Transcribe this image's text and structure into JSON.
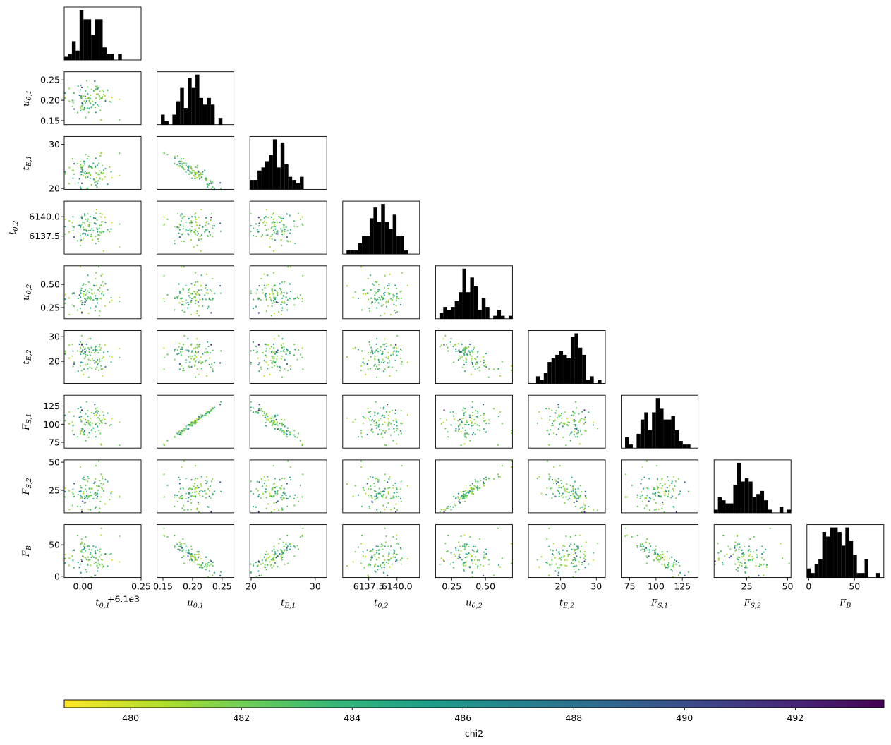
{
  "chart_data": {
    "type": "corner-plot",
    "description_free": true,
    "parameters": [
      {
        "key": "t01",
        "label": "t_{0,1}",
        "main": "t",
        "sub": "0,1",
        "range": [
          -0.08,
          0.25
        ],
        "ticks": [
          0.0,
          0.25
        ],
        "tick_labels": [
          "0.00",
          "0.25"
        ],
        "offset_text": "+6.1e3",
        "center": 0.03,
        "sd": 0.05,
        "yticks": []
      },
      {
        "key": "u01",
        "label": "u_{0,1}",
        "main": "u",
        "sub": "0,1",
        "range": [
          0.14,
          0.27
        ],
        "ticks": [
          0.15,
          0.2,
          0.25
        ],
        "tick_labels": [
          "0.15",
          "0.20",
          "0.25"
        ],
        "center": 0.205,
        "sd": 0.022
      },
      {
        "key": "tE1",
        "label": "t_{E,1}",
        "main": "t",
        "sub": "E,1",
        "range": [
          19.8,
          31.8
        ],
        "ticks": [
          20,
          30
        ],
        "tick_labels": [
          "20",
          "30"
        ],
        "center": 23.5,
        "sd": 2.0
      },
      {
        "key": "t02",
        "label": "t_{0,2}",
        "main": "t",
        "sub": "0,2",
        "range": [
          6135.2,
          6142.0
        ],
        "ticks": [
          6137.5,
          6140.0
        ],
        "tick_labels": [
          "6137.5",
          "6140.0"
        ],
        "center": 6138.7,
        "sd": 1.1
      },
      {
        "key": "u02",
        "label": "u_{0,2}",
        "main": "u",
        "sub": "0,2",
        "range": [
          0.13,
          0.7
        ],
        "ticks": [
          0.25,
          0.5
        ],
        "tick_labels": [
          "0.25",
          "0.50"
        ],
        "center": 0.36,
        "sd": 0.12
      },
      {
        "key": "tE2",
        "label": "t_{E,2}",
        "main": "t",
        "sub": "E,2",
        "range": [
          11.0,
          32.5
        ],
        "ticks": [
          20,
          30
        ],
        "tick_labels": [
          "20",
          "30"
        ],
        "center": 22.5,
        "sd": 4.0
      },
      {
        "key": "FS1",
        "label": "F_{S,1}",
        "main": "F",
        "sub": "S,1",
        "range": [
          67,
          140
        ],
        "ticks": [
          75,
          100,
          125
        ],
        "tick_labels": [
          "75",
          "100",
          "125"
        ],
        "center": 104,
        "sd": 13
      },
      {
        "key": "FS2",
        "label": "F_{S,2}",
        "main": "F",
        "sub": "S,2",
        "range": [
          5,
          52
        ],
        "ticks": [
          25,
          50
        ],
        "tick_labels": [
          "25",
          "50"
        ],
        "center": 22,
        "sd": 10
      },
      {
        "key": "FB",
        "label": "F_B",
        "main": "F",
        "sub": "B",
        "range": [
          -2,
          82
        ],
        "ticks": [
          0,
          50
        ],
        "tick_labels": [
          "0",
          "50"
        ],
        "center": 30,
        "sd": 18
      }
    ],
    "n_samples": 100,
    "scatter_color_by": "chi2",
    "histogram_color": "#000000",
    "histogram_bins": 20,
    "colorbar": {
      "label": "chi2",
      "range": [
        478.8,
        493.6
      ],
      "ticks": [
        480,
        482,
        484,
        486,
        488,
        490,
        492
      ],
      "tick_labels": [
        "480",
        "482",
        "484",
        "486",
        "488",
        "490",
        "492"
      ],
      "colormap": "viridis_r",
      "colors": [
        "#fde725",
        "#b5de2b",
        "#6ece58",
        "#35b779",
        "#1f9e89",
        "#26828e",
        "#31688e",
        "#3e4989",
        "#482878",
        "#440154"
      ]
    },
    "correlations": {
      "u01|tE1": -0.93,
      "u01|FS1": 0.99,
      "u01|FB": -0.8,
      "tE1|FS1": -0.93,
      "tE1|FB": 0.85,
      "u02|tE2": -0.7,
      "u02|FS2": 0.96,
      "tE2|FS2": -0.72,
      "FS1|FB": -0.9,
      "FS2|FB": -0.65,
      "u01|FS2": 0.1,
      "FS1|FS2": 0.15
    }
  }
}
